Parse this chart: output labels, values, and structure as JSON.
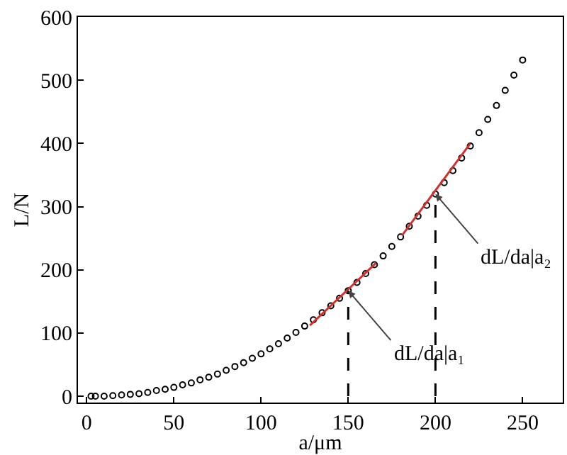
{
  "chart_data": {
    "type": "scatter",
    "xlabel": "a/μm",
    "ylabel": "L/N",
    "xlim": [
      -5,
      273
    ],
    "ylim": [
      -10,
      600
    ],
    "xticks": [
      0,
      50,
      100,
      150,
      200,
      250
    ],
    "yticks": [
      0,
      100,
      200,
      300,
      400,
      500,
      600
    ],
    "grid": false,
    "series": [
      {
        "color": "#000000",
        "marker": "circle",
        "x": [
          2.5,
          5,
          10,
          15,
          20,
          25,
          30,
          35,
          40,
          45,
          50,
          55,
          60,
          65,
          70,
          75,
          80,
          85,
          90,
          95,
          100,
          105,
          110,
          115,
          120,
          125,
          130,
          135,
          140,
          145,
          150,
          155,
          160,
          165,
          170,
          175,
          180,
          185,
          190,
          195,
          200,
          205,
          210,
          215,
          220,
          225,
          230,
          235,
          240,
          245,
          250
        ],
        "values": [
          0,
          0,
          0,
          1,
          2,
          3,
          4,
          6,
          9,
          11,
          14,
          18,
          21,
          26,
          30,
          35,
          41,
          47,
          53,
          60,
          67,
          75,
          83,
          92,
          101,
          111,
          121,
          132,
          143,
          155,
          167,
          180,
          194,
          208,
          222,
          237,
          252,
          269,
          285,
          302,
          320,
          338,
          357,
          377,
          396,
          417,
          438,
          460,
          484,
          508,
          532
        ]
      },
      {
        "type": "line",
        "marker": "none",
        "color": "#d03030",
        "line_style": "solid",
        "x": [
          128,
          166
        ],
        "values": [
          112,
          211
        ]
      },
      {
        "type": "line",
        "marker": "none",
        "color": "#d03030",
        "line_style": "solid",
        "x": [
          181,
          220
        ],
        "values": [
          255,
          400
        ]
      },
      {
        "type": "line",
        "marker": "none",
        "color": "#000000",
        "line_style": "dashed",
        "x": [
          150,
          150
        ],
        "values": [
          0,
          167
        ]
      },
      {
        "type": "line",
        "marker": "none",
        "color": "#000000",
        "line_style": "dashed",
        "x": [
          200,
          200
        ],
        "values": [
          0,
          320
        ]
      }
    ],
    "annotations": [
      {
        "text": "dL/da|a₁",
        "x": 150,
        "y": 167
      },
      {
        "text": "dL/da|a₂",
        "x": 200,
        "y": 320
      }
    ]
  }
}
